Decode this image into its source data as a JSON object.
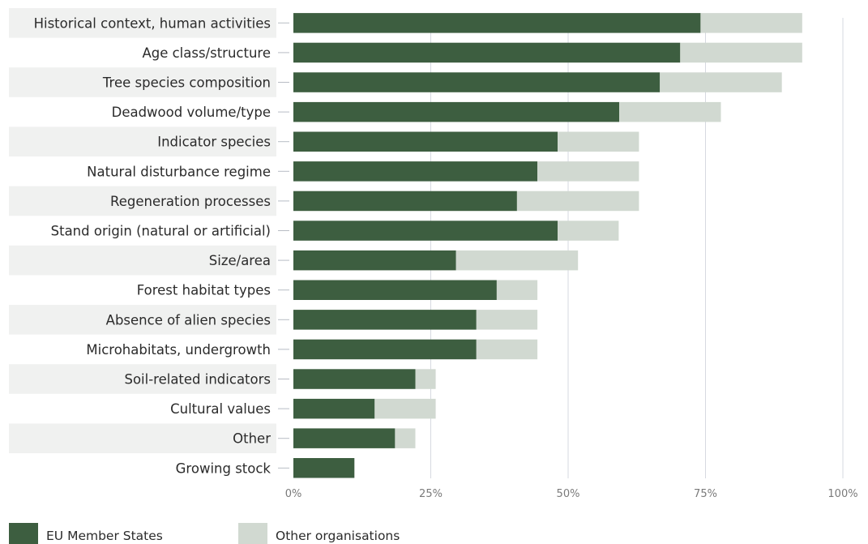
{
  "chart_data": {
    "type": "bar",
    "orientation": "horizontal",
    "stacked": true,
    "categories": [
      "Historical context, human activities",
      "Age class/structure",
      "Tree species composition",
      "Deadwood volume/type",
      "Indicator species",
      "Natural disturbance regime",
      "Regeneration processes",
      "Stand origin (natural or artificial)",
      "Size/area",
      "Forest habitat types",
      "Absence of alien species",
      "Microhabitats, undergrowth",
      "Soil-related indicators",
      "Cultural values",
      "Other",
      "Growing stock"
    ],
    "series": [
      {
        "name": "EU Member States",
        "color": "#3d5e40",
        "values": [
          74.1,
          70.4,
          66.7,
          59.3,
          48.1,
          44.4,
          40.7,
          48.1,
          29.6,
          37.0,
          33.3,
          33.3,
          22.2,
          14.8,
          18.5,
          11.1
        ]
      },
      {
        "name": "Other organisations",
        "color": "#d1d9d1",
        "values": [
          18.5,
          22.2,
          22.2,
          18.5,
          14.8,
          18.5,
          22.2,
          11.1,
          22.2,
          7.4,
          11.1,
          11.1,
          3.7,
          11.1,
          3.7,
          0.0
        ]
      }
    ],
    "xlim": [
      0,
      100
    ],
    "x_ticks": [
      "0%",
      "25%",
      "50%",
      "75%",
      "100%"
    ],
    "x_tick_values": [
      0,
      25,
      50,
      75,
      100
    ],
    "grid": true,
    "legend": "bottom-left",
    "title": "",
    "xlabel": "",
    "ylabel": ""
  }
}
